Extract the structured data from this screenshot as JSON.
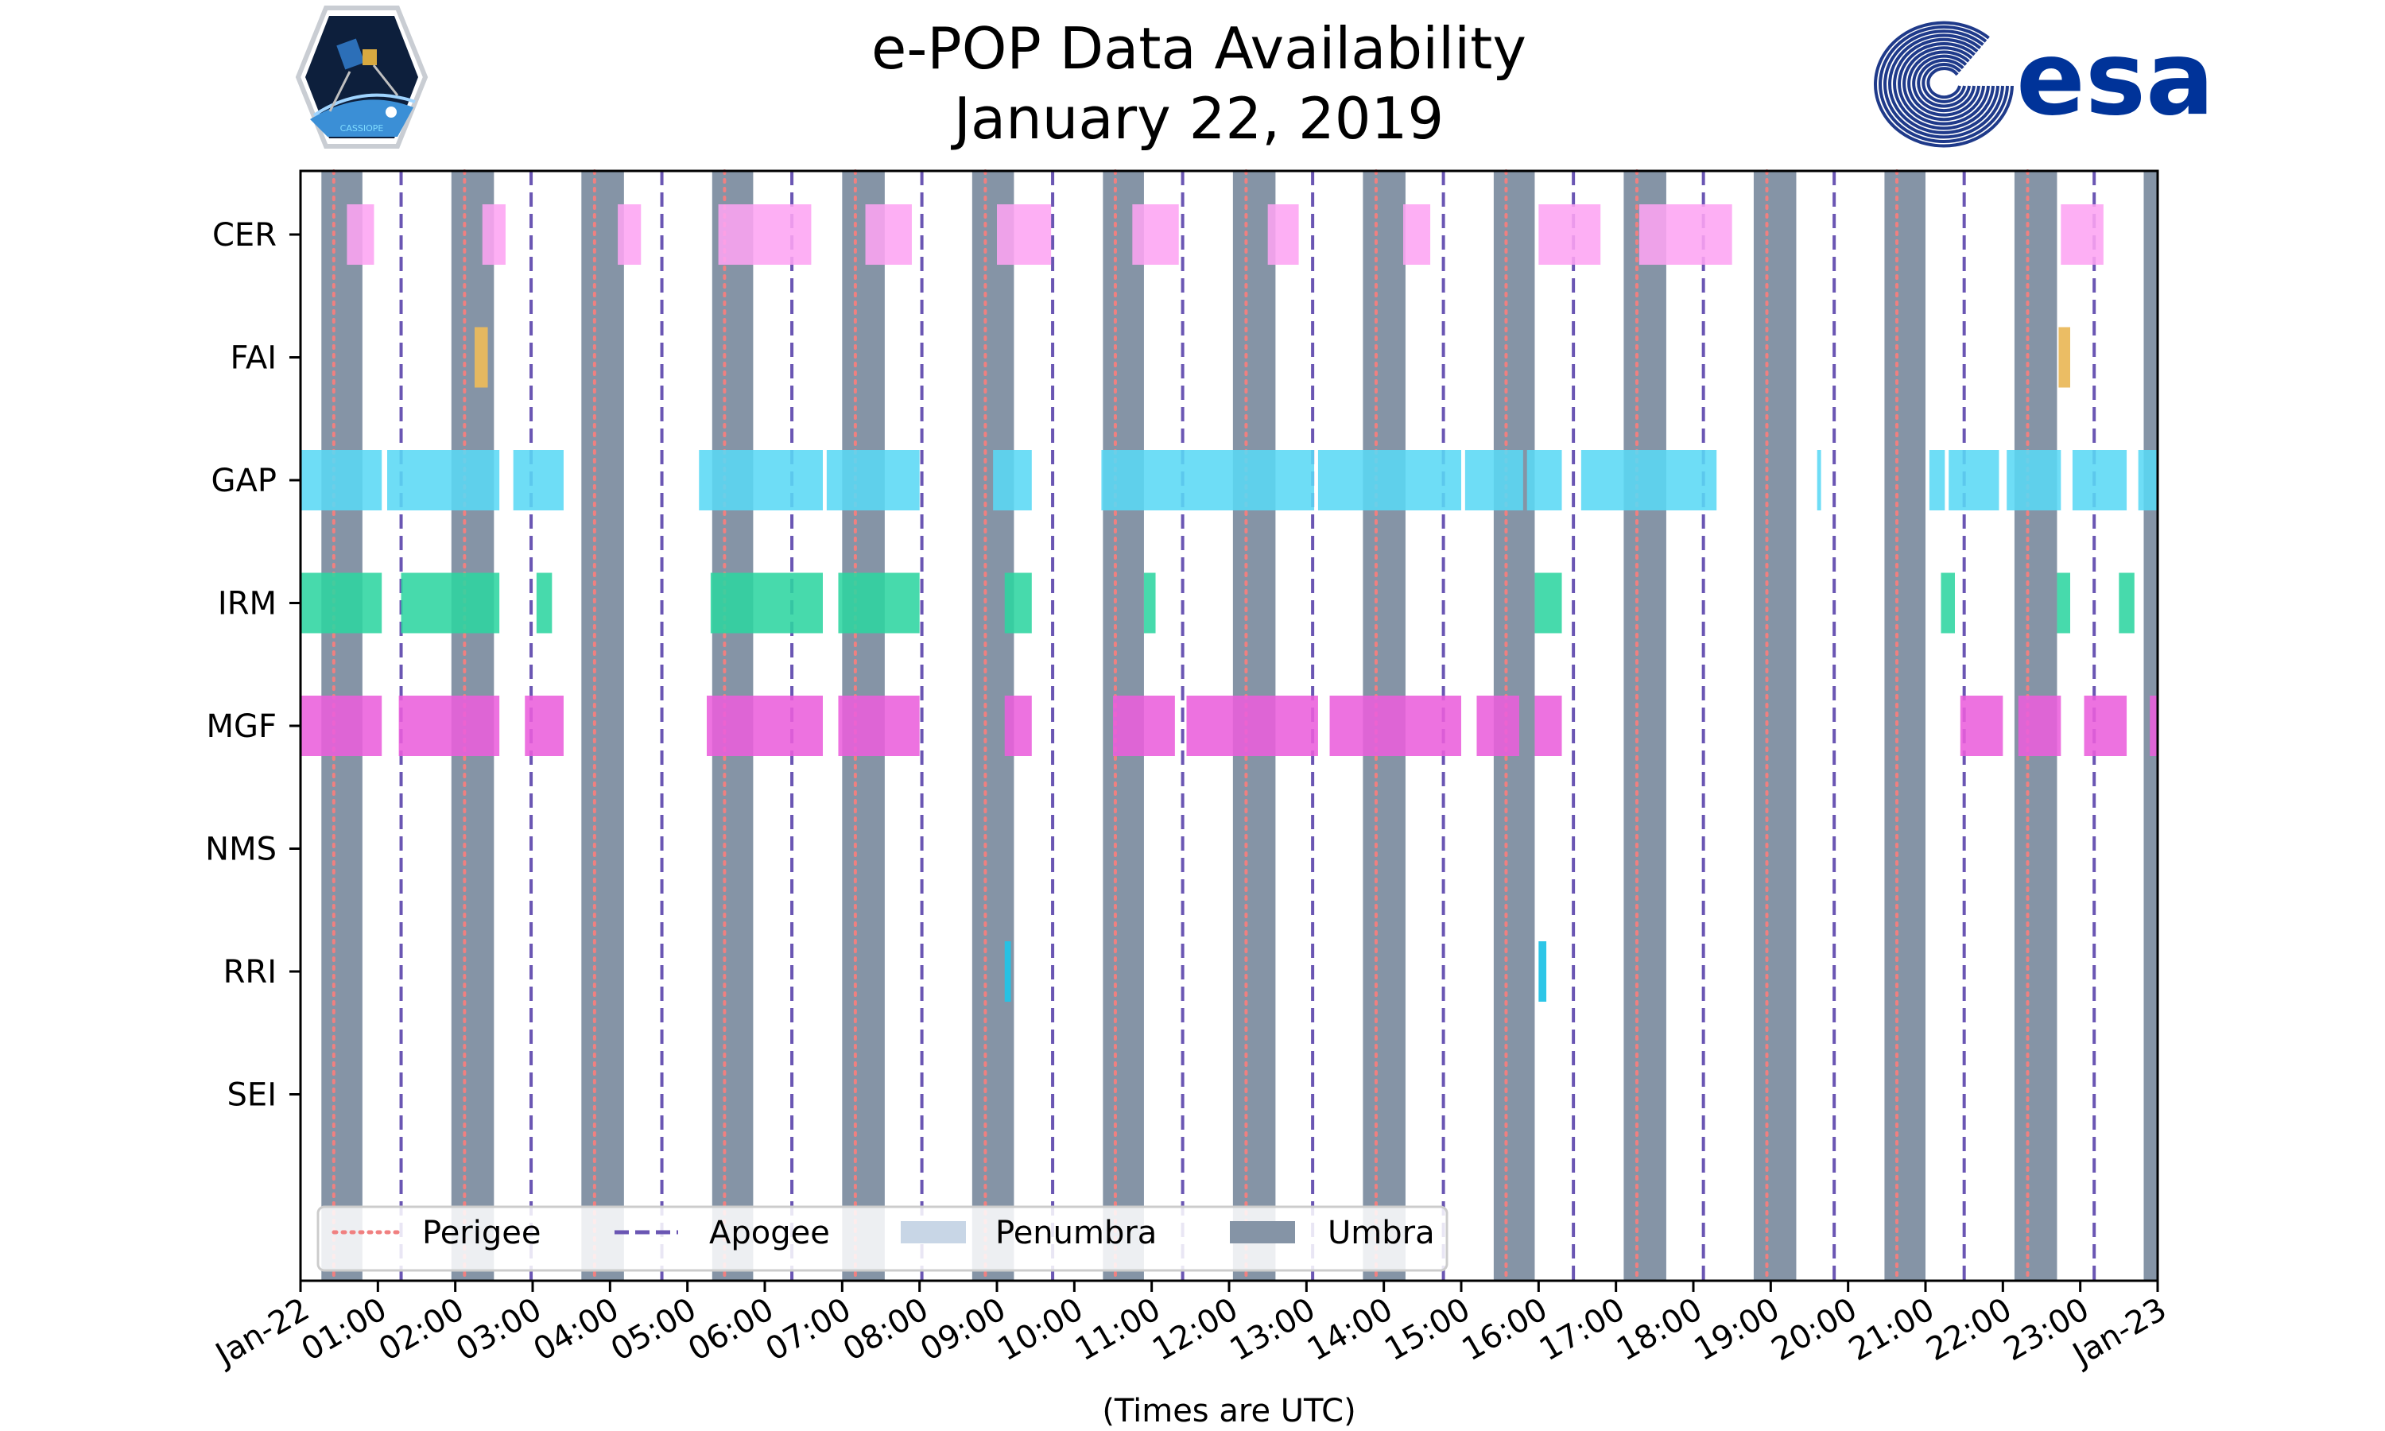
{
  "chart_data": {
    "type": "timeline",
    "title": [
      "e-POP Data Availability",
      "January 22, 2019"
    ],
    "xlabel": "(Times are UTC)",
    "xlim_hours": [
      0,
      24
    ],
    "x_tick_labels": [
      "Jan-22",
      "01:00",
      "02:00",
      "03:00",
      "04:00",
      "05:00",
      "06:00",
      "07:00",
      "08:00",
      "09:00",
      "10:00",
      "11:00",
      "12:00",
      "13:00",
      "14:00",
      "15:00",
      "16:00",
      "17:00",
      "18:00",
      "19:00",
      "20:00",
      "21:00",
      "22:00",
      "23:00",
      "Jan-23"
    ],
    "instruments": [
      "CER",
      "FAI",
      "GAP",
      "IRM",
      "MGF",
      "NMS",
      "RRI",
      "SEI"
    ],
    "colors": {
      "CER": "#fda4f3",
      "FAI": "#eab95c",
      "GAP": "#5ad8f5",
      "IRM": "#2dd5a1",
      "MGF": "#ea5fdc",
      "NMS": "#888888",
      "RRI": "#22c3e6",
      "SEI": "#888888",
      "umbra": "#8594a6",
      "penumbra": "#c8d6e6",
      "perigee": "#f08080",
      "apogee": "#6a56b3"
    },
    "umbra_hours": [
      [
        0.27,
        0.8
      ],
      [
        1.95,
        2.5
      ],
      [
        3.63,
        4.18
      ],
      [
        5.32,
        5.85
      ],
      [
        7.0,
        7.55
      ],
      [
        8.68,
        9.22
      ],
      [
        10.37,
        10.9
      ],
      [
        12.05,
        12.6
      ],
      [
        13.73,
        14.28
      ],
      [
        15.42,
        15.95
      ],
      [
        17.1,
        17.65
      ],
      [
        18.78,
        19.33
      ],
      [
        20.47,
        21.0
      ],
      [
        22.15,
        22.7
      ],
      [
        23.82,
        24.0
      ]
    ],
    "perigee_hours": [
      0.43,
      2.12,
      3.8,
      5.48,
      7.17,
      8.85,
      10.53,
      12.22,
      13.9,
      15.58,
      17.27,
      18.95,
      20.63,
      22.32
    ],
    "apogee_hours": [
      1.3,
      2.98,
      4.67,
      6.35,
      8.03,
      9.72,
      11.4,
      13.08,
      14.77,
      16.45,
      18.13,
      19.82,
      21.5,
      23.18
    ],
    "series": [
      {
        "name": "CER",
        "intervals": [
          [
            0.6,
            0.95
          ],
          [
            2.35,
            2.65
          ],
          [
            4.1,
            4.4
          ],
          [
            5.4,
            6.6
          ],
          [
            7.3,
            7.9
          ],
          [
            9.0,
            9.7
          ],
          [
            10.75,
            11.35
          ],
          [
            12.5,
            12.9
          ],
          [
            14.25,
            14.6
          ],
          [
            16.0,
            16.8
          ],
          [
            17.3,
            18.5
          ],
          [
            22.75,
            23.3
          ]
        ]
      },
      {
        "name": "FAI",
        "intervals": [
          [
            2.25,
            2.42
          ],
          [
            22.72,
            22.87
          ]
        ]
      },
      {
        "name": "GAP",
        "intervals": [
          [
            0.0,
            1.05
          ],
          [
            1.12,
            2.57
          ],
          [
            2.75,
            3.4
          ],
          [
            5.15,
            6.75
          ],
          [
            6.8,
            8.0
          ],
          [
            8.95,
            9.45
          ],
          [
            10.35,
            13.1
          ],
          [
            13.15,
            15.0
          ],
          [
            15.05,
            15.8
          ],
          [
            15.85,
            16.3
          ],
          [
            16.55,
            18.3
          ],
          [
            19.6,
            19.65
          ],
          [
            21.05,
            21.25
          ],
          [
            21.3,
            21.95
          ],
          [
            22.05,
            22.75
          ],
          [
            22.9,
            23.6
          ],
          [
            23.75,
            24.0
          ]
        ]
      },
      {
        "name": "IRM",
        "intervals": [
          [
            0.0,
            1.05
          ],
          [
            1.3,
            2.57
          ],
          [
            3.05,
            3.25
          ],
          [
            5.3,
            6.75
          ],
          [
            6.95,
            8.0
          ],
          [
            9.1,
            9.45
          ],
          [
            10.9,
            11.05
          ],
          [
            15.95,
            16.3
          ],
          [
            21.2,
            21.38
          ],
          [
            22.7,
            22.87
          ],
          [
            23.5,
            23.7
          ]
        ]
      },
      {
        "name": "MGF",
        "intervals": [
          [
            0.0,
            1.05
          ],
          [
            1.27,
            2.57
          ],
          [
            2.9,
            3.4
          ],
          [
            5.25,
            6.75
          ],
          [
            6.95,
            8.0
          ],
          [
            9.1,
            9.45
          ],
          [
            10.5,
            11.3
          ],
          [
            11.45,
            13.15
          ],
          [
            13.3,
            15.0
          ],
          [
            15.2,
            15.75
          ],
          [
            15.95,
            16.3
          ],
          [
            21.45,
            22.0
          ],
          [
            22.2,
            22.75
          ],
          [
            23.05,
            23.6
          ],
          [
            23.9,
            24.0
          ]
        ]
      },
      {
        "name": "NMS",
        "intervals": []
      },
      {
        "name": "RRI",
        "intervals": [
          [
            9.1,
            9.18
          ],
          [
            16.0,
            16.1
          ]
        ]
      },
      {
        "name": "SEI",
        "intervals": []
      }
    ],
    "legend": {
      "position": "bottom-left",
      "entries": [
        {
          "label": "Perigee",
          "style": "dotted"
        },
        {
          "label": "Apogee",
          "style": "dashed"
        },
        {
          "label": "Penumbra",
          "style": "patch"
        },
        {
          "label": "Umbra",
          "style": "patch"
        }
      ]
    }
  },
  "logos": {
    "left": {
      "icon": "cassiope-mission-badge-icon",
      "text": "CASSIOPE"
    },
    "right": {
      "icon": "esa-logo-icon",
      "text": "esa"
    }
  }
}
